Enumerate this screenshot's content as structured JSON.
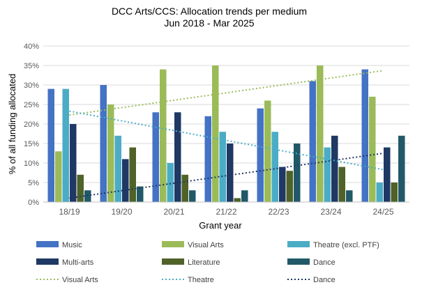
{
  "chart_data": {
    "type": "bar",
    "title": "DCC Arts/CCS:  Allocation trends per medium",
    "subtitle": "Jun 2018 - Mar 2025",
    "xlabel": "Grant year",
    "ylabel": "% of all funding allocated",
    "ylim": [
      0,
      40
    ],
    "yticks": [
      "0%",
      "5%",
      "10%",
      "15%",
      "20%",
      "25%",
      "30%",
      "35%",
      "40%"
    ],
    "grid": true,
    "legend_position": "bottom",
    "categories": [
      "18/19",
      "19/20",
      "20/21",
      "21/22",
      "22/23",
      "23/24",
      "24/25"
    ],
    "series": [
      {
        "name": "Music",
        "color": "#4472C4",
        "values": [
          29,
          30,
          23,
          22,
          24,
          31,
          34
        ]
      },
      {
        "name": "Visual Arts",
        "color": "#9BBB59",
        "values": [
          13,
          25,
          34,
          35,
          26,
          35,
          27
        ]
      },
      {
        "name": "Theatre (excl. PTF)",
        "color": "#4BACC6",
        "values": [
          29,
          17,
          10,
          18,
          18,
          14,
          5
        ]
      },
      {
        "name": "Multi-arts",
        "color": "#1F3864",
        "values": [
          20,
          11,
          23,
          15,
          9,
          17,
          14
        ]
      },
      {
        "name": "Literature",
        "color": "#4F6228",
        "values": [
          7,
          14,
          7,
          1,
          8,
          9,
          5
        ]
      },
      {
        "name": "Dance",
        "color": "#215968",
        "values": [
          3,
          4,
          3,
          3,
          15,
          3,
          17
        ]
      }
    ],
    "trendlines": [
      {
        "name": "Visual Arts",
        "color": "#9BBB59",
        "start": 22.3,
        "end": 33.7
      },
      {
        "name": "Theatre",
        "color": "#4BACC6",
        "start": 23.3,
        "end": 8.3
      },
      {
        "name": "Dance",
        "color": "#1F3864",
        "start": 1.0,
        "end": 12.5
      }
    ]
  }
}
